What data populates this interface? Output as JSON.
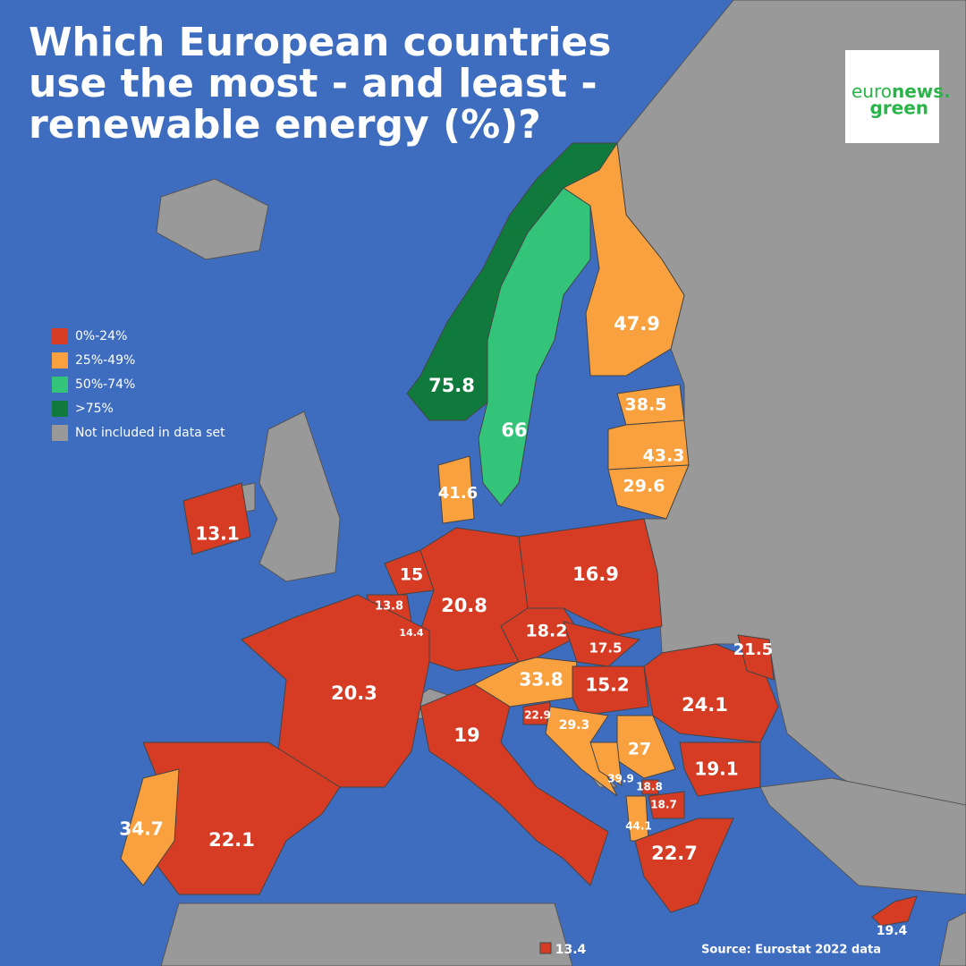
{
  "title": [
    "Which European countries",
    "use the most - and least -",
    "renewable energy (%)?"
  ],
  "logo": {
    "part1": "euro",
    "part2": "news.",
    "part3": "green"
  },
  "legend": [
    {
      "label": "0%-24%",
      "color": "#d63b24"
    },
    {
      "label": "25%-49%",
      "color": "#f9a13f"
    },
    {
      "label": "50%-74%",
      "color": "#33c47a"
    },
    {
      "label": ">75%",
      "color": "#107a3d"
    },
    {
      "label": "Not included in data set",
      "color": "#999999"
    }
  ],
  "regions": [
    {
      "value": 75.8,
      "color": "#107a3d"
    },
    {
      "value": 66,
      "color": "#33c47a"
    },
    {
      "value": 47.9,
      "color": "#f9a13f"
    },
    {
      "value": 38.5,
      "color": "#f9a13f"
    },
    {
      "value": 43.3,
      "color": "#f9a13f"
    },
    {
      "value": 29.6,
      "color": "#f9a13f"
    },
    {
      "value": 41.6,
      "color": "#f9a13f"
    },
    {
      "value": 13.1,
      "color": "#d63b24"
    },
    {
      "value": 15,
      "color": "#d63b24"
    },
    {
      "value": 13.8,
      "color": "#d63b24"
    },
    {
      "value": 14.4,
      "color": "#d63b24"
    },
    {
      "value": 20.8,
      "color": "#d63b24"
    },
    {
      "value": 16.9,
      "color": "#d63b24"
    },
    {
      "value": 18.2,
      "color": "#d63b24"
    },
    {
      "value": 17.5,
      "color": "#d63b24"
    },
    {
      "value": 33.8,
      "color": "#f9a13f"
    },
    {
      "value": 15.2,
      "color": "#d63b24"
    },
    {
      "value": 24.1,
      "color": "#d63b24"
    },
    {
      "value": 21.5,
      "color": "#d63b24"
    },
    {
      "value": 20.3,
      "color": "#d63b24"
    },
    {
      "value": 19,
      "color": "#d63b24"
    },
    {
      "value": 22.9,
      "color": "#d63b24"
    },
    {
      "value": 29.3,
      "color": "#f9a13f"
    },
    {
      "value": 27,
      "color": "#f9a13f"
    },
    {
      "value": 39.9,
      "color": "#f9a13f"
    },
    {
      "value": 18.8,
      "color": "#d63b24"
    },
    {
      "value": 18.7,
      "color": "#d63b24"
    },
    {
      "value": 44.1,
      "color": "#f9a13f"
    },
    {
      "value": 19.1,
      "color": "#d63b24"
    },
    {
      "value": 22.7,
      "color": "#d63b24"
    },
    {
      "value": 22.1,
      "color": "#d63b24"
    },
    {
      "value": 34.7,
      "color": "#f9a13f"
    },
    {
      "value": 13.4,
      "color": "#d63b24"
    },
    {
      "value": 19.4,
      "color": "#d63b24"
    }
  ],
  "source": "Source: Eurostat 2022 data"
}
